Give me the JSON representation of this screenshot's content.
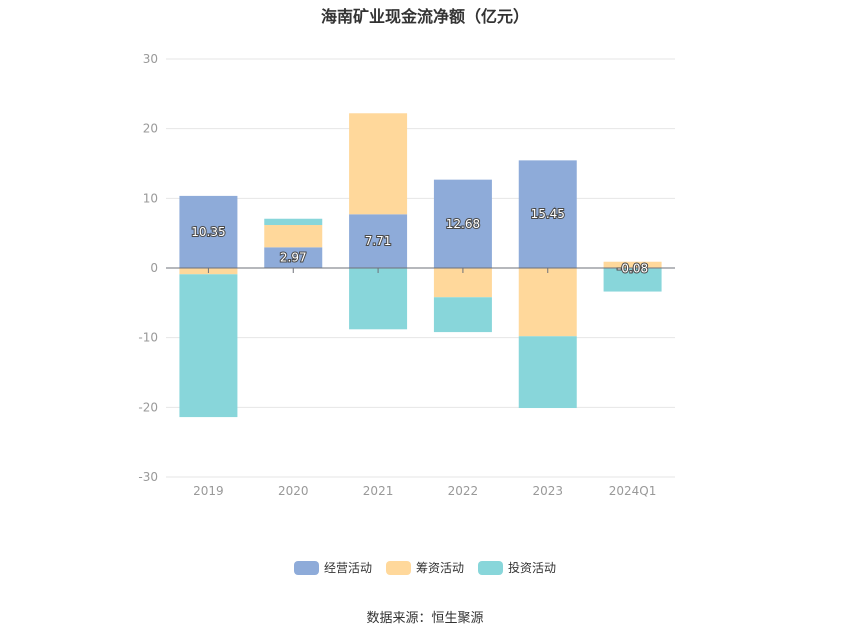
{
  "title": "海南矿业现金流净额（亿元）",
  "source": "数据来源：恒生聚源",
  "chart_data": {
    "type": "bar",
    "stacked": true,
    "title": "海南矿业现金流净额（亿元）",
    "xlabel": "",
    "ylabel": "",
    "categories": [
      "2019",
      "2020",
      "2021",
      "2022",
      "2023",
      "2024Q1"
    ],
    "ylim": [
      -30,
      30
    ],
    "yticks": [
      30,
      20,
      10,
      0,
      -10,
      -20,
      -30
    ],
    "grid": true,
    "legend": "bottom",
    "series": [
      {
        "name": "经营活动",
        "color": "#8eabd9",
        "show_labels": true,
        "values": [
          10.35,
          2.97,
          7.71,
          12.68,
          15.45,
          -0.08
        ]
      },
      {
        "name": "筹资活动",
        "color": "#ffd89b",
        "show_labels": false,
        "values": [
          -0.9,
          3.2,
          14.5,
          -4.2,
          -9.8,
          0.9
        ]
      },
      {
        "name": "投资活动",
        "color": "#88d6da",
        "show_labels": false,
        "values": [
          -20.5,
          0.9,
          -8.8,
          -5.0,
          -10.3,
          -3.3
        ]
      }
    ]
  }
}
